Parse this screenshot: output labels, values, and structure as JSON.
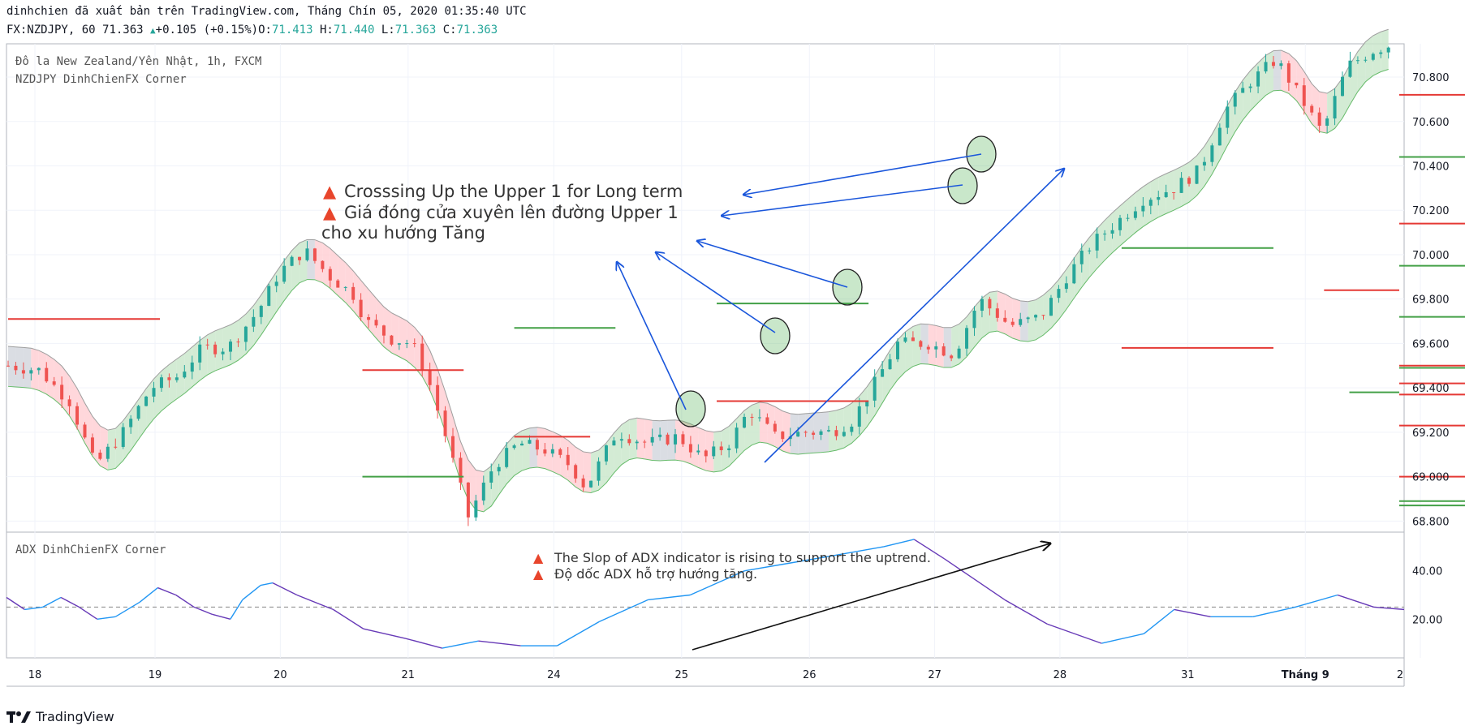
{
  "header": {
    "line1": "dinhchien đã xuất bản trên TradingView.com, Tháng Chín 05, 2020 01:35:40 UTC",
    "symbol": "FX:NZDJPY, 60",
    "last": "71.363",
    "change": "+0.105",
    "change_pct": "(+0.15%)",
    "o_label": "O:",
    "o_val": "71.413",
    "h_label": "H:",
    "h_val": "71.440",
    "l_label": "L:",
    "l_val": "71.363",
    "c_label": "C:",
    "c_val": "71.363"
  },
  "main_pane": {
    "title_line1": "Đô la New Zealand/Yên Nhật, 1h, FXCM",
    "title_line2": "NZDJPY DinhChienFX Corner"
  },
  "adx_pane": {
    "title": "ADX DinhChienFX Corner"
  },
  "annotations": {
    "main_line1": "Crosssing Up the Upper 1 for Long term",
    "main_line2": "Giá đóng cửa xuyên lên đường Upper 1",
    "main_line3": "cho xu hướng Tăng",
    "adx_line1": "The Slop of ADX indicator is rising to support the uptrend.",
    "adx_line2": "Độ dốc ADX hỗ trợ hướng tăng."
  },
  "footer": {
    "logo_text": "TradingView"
  },
  "colors": {
    "up": "#26a69a",
    "down": "#ef5350",
    "bull_band": "#c8e6c9",
    "bear_band": "#ffcdd2",
    "neutral_band": "#d1d4dc",
    "adx_up": "#2196f3",
    "adx_down": "#673ab7",
    "arrow": "#1a56db"
  },
  "chart_data": [
    {
      "type": "candlestick",
      "title": "Đô la New Zealand/Yên Nhật, 1h, FXCM",
      "x_tick_labels": [
        "18",
        "19",
        "20",
        "21",
        "24",
        "25",
        "26",
        "27",
        "28",
        "31",
        "Tháng 9",
        "2"
      ],
      "y_tick_labels": [
        "70.800",
        "70.600",
        "70.400",
        "70.200",
        "70.000",
        "69.800",
        "69.600",
        "69.400",
        "69.200",
        "69.000",
        "68.800"
      ],
      "ylim": [
        68.75,
        70.95
      ],
      "close_path": [
        [
          0,
          69.5
        ],
        [
          12,
          69.48
        ],
        [
          24,
          69.34
        ],
        [
          34,
          69.05
        ],
        [
          45,
          69.2
        ],
        [
          56,
          69.4
        ],
        [
          66,
          69.45
        ],
        [
          76,
          69.58
        ],
        [
          86,
          69.58
        ],
        [
          98,
          69.75
        ],
        [
          106,
          69.92
        ],
        [
          116,
          70.02
        ],
        [
          126,
          69.9
        ],
        [
          135,
          69.82
        ],
        [
          140,
          69.7
        ],
        [
          150,
          69.62
        ],
        [
          158,
          69.6
        ],
        [
          164,
          69.45
        ],
        [
          172,
          69.15
        ],
        [
          180,
          68.82
        ],
        [
          190,
          69.05
        ],
        [
          200,
          69.15
        ],
        [
          210,
          69.12
        ],
        [
          220,
          69.05
        ],
        [
          226,
          68.95
        ],
        [
          238,
          69.2
        ],
        [
          250,
          69.15
        ],
        [
          262,
          69.18
        ],
        [
          272,
          69.08
        ],
        [
          282,
          69.15
        ],
        [
          290,
          69.3
        ],
        [
          300,
          69.18
        ],
        [
          312,
          69.2
        ],
        [
          322,
          69.2
        ],
        [
          330,
          69.25
        ],
        [
          338,
          69.4
        ],
        [
          348,
          69.6
        ],
        [
          360,
          69.6
        ],
        [
          370,
          69.55
        ],
        [
          380,
          69.8
        ],
        [
          392,
          69.68
        ],
        [
          404,
          69.72
        ],
        [
          414,
          69.9
        ],
        [
          424,
          70.05
        ],
        [
          434,
          70.15
        ],
        [
          444,
          70.25
        ],
        [
          456,
          70.3
        ],
        [
          466,
          70.38
        ],
        [
          476,
          70.65
        ],
        [
          486,
          70.78
        ],
        [
          496,
          70.88
        ],
        [
          506,
          70.7
        ],
        [
          514,
          70.55
        ],
        [
          524,
          70.85
        ],
        [
          534,
          70.92
        ],
        [
          542,
          70.95
        ]
      ],
      "horizontal_levels": [
        {
          "color": "green",
          "price": 69.0,
          "x": [
            14,
            18
          ]
        },
        {
          "color": "green",
          "price": 69.67,
          "x": [
            20,
            24
          ]
        },
        {
          "color": "green",
          "price": 69.78,
          "x": [
            28,
            34
          ]
        },
        {
          "color": "green",
          "price": 70.03,
          "x": [
            44,
            50
          ]
        },
        {
          "color": "green",
          "price": 69.38,
          "x": [
            53,
            60
          ]
        },
        {
          "color": "green",
          "price": 68.89,
          "x": [
            72,
            83
          ]
        },
        {
          "color": "green",
          "price": 68.87,
          "x": [
            86,
            111
          ]
        },
        {
          "color": "green",
          "price": 69.49,
          "x": [
            113,
            132
          ]
        },
        {
          "color": "green",
          "price": 69.72,
          "x": [
            138,
            146
          ]
        },
        {
          "color": "green",
          "price": 69.95,
          "x": [
            151,
            160
          ]
        },
        {
          "color": "green",
          "price": 70.44,
          "x": [
            206,
            216
          ]
        },
        {
          "color": "red",
          "price": 69.71,
          "x": [
            0,
            6
          ]
        },
        {
          "color": "red",
          "price": 69.48,
          "x": [
            14,
            18
          ]
        },
        {
          "color": "red",
          "price": 69.18,
          "x": [
            20,
            23
          ]
        },
        {
          "color": "red",
          "price": 69.34,
          "x": [
            28,
            34
          ]
        },
        {
          "color": "red",
          "price": 69.58,
          "x": [
            44,
            50
          ]
        },
        {
          "color": "red",
          "price": 69.84,
          "x": [
            52,
            60
          ]
        },
        {
          "color": "red",
          "price": 69.42,
          "x": [
            72,
            83
          ]
        },
        {
          "color": "red",
          "price": 69.37,
          "x": [
            86,
            111
          ]
        },
        {
          "color": "red",
          "price": 69.0,
          "x": [
            113,
            132
          ]
        },
        {
          "color": "red",
          "price": 69.23,
          "x": [
            139,
            146
          ]
        },
        {
          "color": "red",
          "price": 69.5,
          "x": [
            151,
            160
          ]
        },
        {
          "color": "red",
          "price": 70.14,
          "x": [
            183,
            186
          ]
        },
        {
          "color": "red",
          "price": 70.72,
          "x": [
            218,
            227
          ]
        }
      ]
    },
    {
      "type": "line",
      "title": "ADX DinhChienFX Corner",
      "y_tick_labels": [
        "40.00",
        "20.00"
      ],
      "ylim": [
        4,
        56
      ],
      "reference_level": 25,
      "series": [
        {
          "values": [
            [
              0,
              29
            ],
            [
              6,
              24
            ],
            [
              12,
              25
            ],
            [
              18,
              29
            ],
            [
              24,
              25
            ],
            [
              30,
              20
            ],
            [
              36,
              21
            ],
            [
              44,
              27
            ],
            [
              50,
              33
            ],
            [
              56,
              30
            ],
            [
              62,
              25
            ],
            [
              68,
              22
            ],
            [
              74,
              20
            ],
            [
              78,
              28
            ],
            [
              84,
              34
            ],
            [
              88,
              35
            ],
            [
              96,
              30
            ],
            [
              108,
              24
            ],
            [
              118,
              16
            ],
            [
              132,
              12
            ],
            [
              144,
              8
            ],
            [
              156,
              11
            ],
            [
              170,
              9
            ],
            [
              182,
              9
            ],
            [
              196,
              19
            ],
            [
              212,
              28
            ],
            [
              226,
              30
            ],
            [
              244,
              40
            ],
            [
              258,
              43
            ],
            [
              272,
              46
            ],
            [
              290,
              50
            ],
            [
              300,
              53
            ],
            [
              310,
              45
            ],
            [
              330,
              28
            ],
            [
              344,
              18
            ],
            [
              362,
              10
            ],
            [
              376,
              14
            ],
            [
              386,
              24
            ],
            [
              398,
              21
            ],
            [
              412,
              21
            ],
            [
              426,
              25
            ],
            [
              440,
              30
            ],
            [
              452,
              25
            ],
            [
              462,
              24
            ]
          ]
        }
      ]
    }
  ]
}
